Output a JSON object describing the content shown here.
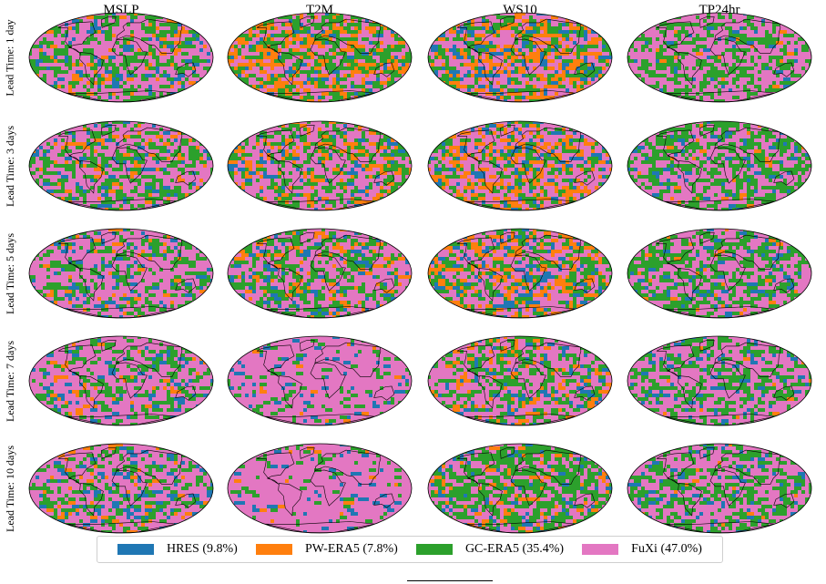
{
  "columns": [
    "MSLP",
    "T2M",
    "WS10",
    "TP24hr"
  ],
  "rows": [
    "Lead Time: 1 day",
    "Lead Time: 3 days",
    "Lead Time: 5 days",
    "Lead Time: 7 days",
    "Lead Time: 10 days"
  ],
  "legend": [
    {
      "label": "HRES (9.8%)",
      "color": "#1f77b4"
    },
    {
      "label": "PW-ERA5 (7.8%)",
      "color": "#ff7f0e"
    },
    {
      "label": "GC-ERA5 (35.4%)",
      "color": "#2ca02c"
    },
    {
      "label": "FuXi (47.0%)",
      "color": "#e377c2"
    }
  ],
  "colors": {
    "HRES": "#1f77b4",
    "PW-ERA5": "#ff7f0e",
    "GC-ERA5": "#2ca02c",
    "FuXi": "#e377c2"
  },
  "map_mix": [
    [
      [
        0.08,
        0.1,
        0.48,
        0.34
      ],
      [
        0.08,
        0.36,
        0.34,
        0.22
      ],
      [
        0.16,
        0.36,
        0.2,
        0.28
      ],
      [
        0.04,
        0.02,
        0.52,
        0.42
      ]
    ],
    [
      [
        0.08,
        0.08,
        0.48,
        0.36
      ],
      [
        0.08,
        0.14,
        0.46,
        0.32
      ],
      [
        0.12,
        0.26,
        0.32,
        0.3
      ],
      [
        0.06,
        0.02,
        0.58,
        0.34
      ]
    ],
    [
      [
        0.1,
        0.06,
        0.42,
        0.42
      ],
      [
        0.1,
        0.1,
        0.44,
        0.36
      ],
      [
        0.14,
        0.2,
        0.38,
        0.28
      ],
      [
        0.08,
        0.02,
        0.56,
        0.34
      ]
    ],
    [
      [
        0.08,
        0.05,
        0.17,
        0.7
      ],
      [
        0.06,
        0.01,
        0.08,
        0.85
      ],
      [
        0.1,
        0.1,
        0.42,
        0.38
      ],
      [
        0.08,
        0.01,
        0.26,
        0.65
      ]
    ],
    [
      [
        0.1,
        0.05,
        0.18,
        0.67
      ],
      [
        0.05,
        0.01,
        0.06,
        0.88
      ],
      [
        0.1,
        0.08,
        0.4,
        0.42
      ],
      [
        0.08,
        0.01,
        0.28,
        0.63
      ]
    ]
  ]
}
